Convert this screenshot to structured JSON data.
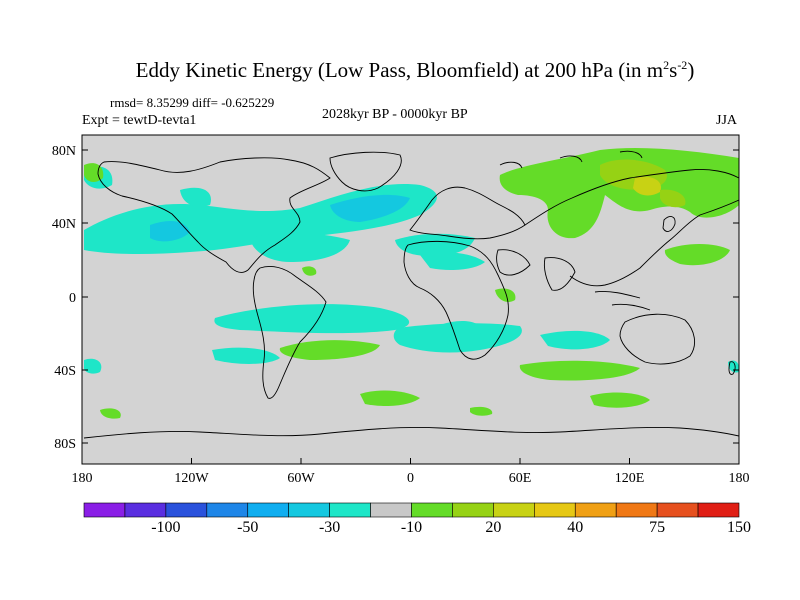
{
  "title": {
    "text": "Eddy Kinetic Energy (Low Pass, Bloomfield) at 200 hPa (in m",
    "sup1": "2",
    "mid": "s",
    "sup2": "-2",
    "end": ")"
  },
  "stats": "rmsd= 8.35299 diff= -0.625229",
  "expt": "Expt = tewtD-tevta1",
  "period": "2028kyr BP - 0000kyr BP",
  "season": "JJA",
  "axes": {
    "lat_ticks": [
      "80N",
      "40N",
      "0",
      "40S",
      "80S"
    ],
    "lon_ticks": [
      "180",
      "120W",
      "60W",
      "0",
      "60E",
      "120E",
      "180"
    ]
  },
  "colorbar": {
    "colors": [
      "#8a1ee6",
      "#5a2ee0",
      "#2a52dc",
      "#1e86e8",
      "#10aef0",
      "#14c8e0",
      "#1ee6c8",
      "#c8c8c8",
      "#64dc28",
      "#96d214",
      "#c8d214",
      "#e6c814",
      "#f0a014",
      "#f07814",
      "#e6501e",
      "#e01e14"
    ],
    "labels": [
      "-100",
      "-50",
      "-30",
      "-10",
      "20",
      "40",
      "75",
      "150"
    ]
  },
  "fill_colors": {
    "background": "#d3d3d3",
    "neg_light": "#1ee6c8",
    "neg_mid": "#14c8e0",
    "pos_light": "#64dc28",
    "pos_mid": "#96d214",
    "pos_high": "#c8d214"
  }
}
